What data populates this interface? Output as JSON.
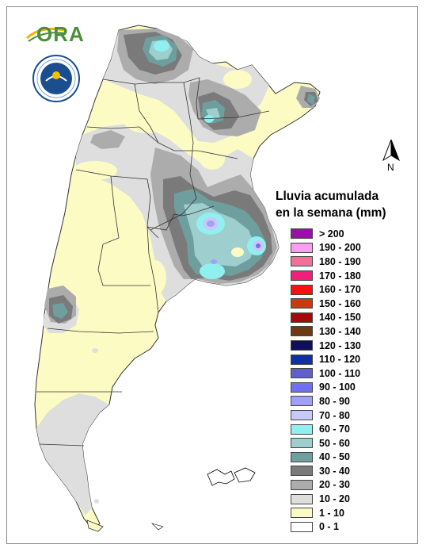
{
  "map": {
    "legend_title_line1": "Lluvia acumulada",
    "legend_title_line2": "en la semana (mm)",
    "north_label": "N",
    "logo_text": "ORA",
    "legend": [
      {
        "label": "> 200",
        "color": "#9a0fa8"
      },
      {
        "label": "190 - 200",
        "color": "#f7a0f0"
      },
      {
        "label": "180 - 190",
        "color": "#f0709a"
      },
      {
        "label": "170 - 180",
        "color": "#f0207a"
      },
      {
        "label": "160 - 170",
        "color": "#ff1010"
      },
      {
        "label": "150 - 160",
        "color": "#c83a10"
      },
      {
        "label": "140 - 150",
        "color": "#a40a0a"
      },
      {
        "label": "130 - 140",
        "color": "#6e3a14"
      },
      {
        "label": "120 - 130",
        "color": "#10105a"
      },
      {
        "label": "110 - 120",
        "color": "#1030a0"
      },
      {
        "label": "100 - 110",
        "color": "#6060c8"
      },
      {
        "label": "90 - 100",
        "color": "#7070f0"
      },
      {
        "label": "80 - 90",
        "color": "#a0a0f8"
      },
      {
        "label": "70 - 80",
        "color": "#c8c8f8"
      },
      {
        "label": "60 - 70",
        "color": "#90f0f0"
      },
      {
        "label": "50 - 60",
        "color": "#9ecece"
      },
      {
        "label": "40 - 50",
        "color": "#6e9e9e"
      },
      {
        "label": "30 - 40",
        "color": "#7a7a7a"
      },
      {
        "label": "20 - 30",
        "color": "#acacac"
      },
      {
        "label": "10 - 20",
        "color": "#dedede"
      },
      {
        "label": "1 - 10",
        "color": "#fdfbc4"
      },
      {
        "label": "0 - 1",
        "color": "#ffffff"
      }
    ]
  }
}
